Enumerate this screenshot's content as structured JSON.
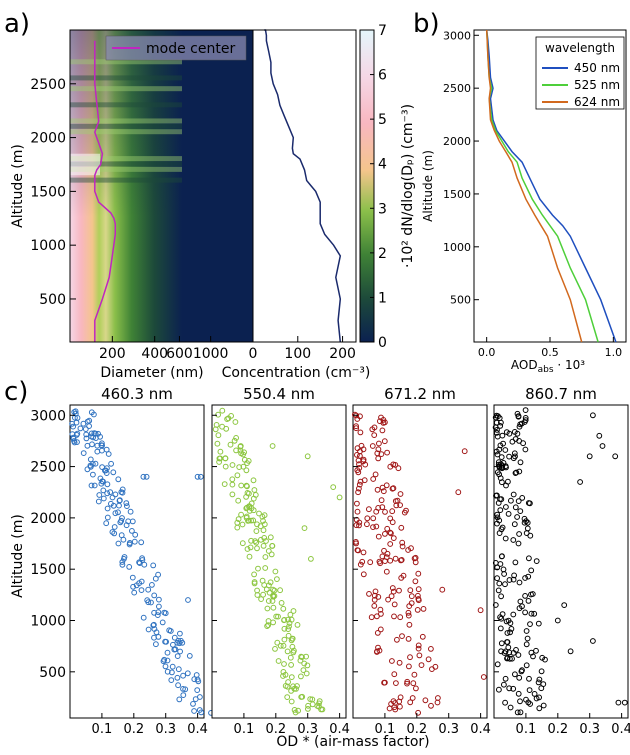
{
  "panel_labels": {
    "a": "a)",
    "b": "b)",
    "c": "c)"
  },
  "chart_data": [
    {
      "type": "heatmap",
      "id": "size-distribution",
      "ylabel": "Altitude (m)",
      "xlabel": "Diameter (nm)",
      "yticks": [
        500,
        1000,
        1500,
        2000,
        2500
      ],
      "xticks": [
        "200",
        "400",
        "600",
        "1000"
      ],
      "ylim": [
        100,
        3000
      ],
      "legend": [
        {
          "name": "mode center",
          "color": "#c026c0"
        }
      ],
      "mode_center": {
        "x_diam": [
          150,
          150,
          170,
          190,
          200,
          210,
          210,
          205,
          195,
          160,
          150,
          150,
          155,
          165,
          170,
          160,
          150,
          160,
          150,
          150,
          150
        ],
        "y": [
          100,
          300,
          500,
          700,
          900,
          1100,
          1200,
          1250,
          1300,
          1400,
          1500,
          1650,
          1700,
          1750,
          1850,
          1950,
          2050,
          2150,
          2500,
          2700,
          2900
        ]
      },
      "colorbar": {
        "label": "·10² dN/dlog(Dₚ) (cm⁻³)",
        "ticks": [
          "0",
          "1",
          "2",
          "3",
          "4",
          "5",
          "6",
          "7"
        ],
        "range": [
          0,
          7
        ]
      }
    },
    {
      "type": "line",
      "id": "concentration",
      "xlabel": "Concentration (cm⁻³)",
      "xticks": [
        "0",
        "100",
        "200"
      ],
      "xlim": [
        0,
        230
      ],
      "series": [
        {
          "color": "#1a2a6c",
          "x": [
            195,
            190,
            195,
            185,
            195,
            180,
            160,
            150,
            150,
            150,
            140,
            130,
            120,
            115,
            105,
            90,
            88,
            90,
            80,
            70,
            60,
            55,
            45,
            40,
            40,
            35,
            30,
            30,
            28,
            25
          ],
          "y": [
            100,
            300,
            500,
            700,
            900,
            1000,
            1100,
            1200,
            1300,
            1400,
            1500,
            1550,
            1600,
            1700,
            1800,
            1850,
            1900,
            2000,
            2100,
            2200,
            2300,
            2400,
            2500,
            2600,
            2700,
            2800,
            2900,
            2950,
            3000,
            3000
          ]
        }
      ]
    },
    {
      "type": "line",
      "id": "aod-abs",
      "xlabel": "AOD",
      "xlabel_sub": "abs",
      "xlabel_suffix": " · 10³",
      "ylabel": "Altitude (m)",
      "xlim": [
        -0.1,
        1.1
      ],
      "ylim": [
        100,
        3050
      ],
      "xticks": [
        "0.0",
        "0.5",
        "1.0"
      ],
      "yticks": [
        "500",
        "1000",
        "1500",
        "2000",
        "2500",
        "3000"
      ],
      "legend_title": "wavelength",
      "series": [
        {
          "name": "450 nm",
          "color": "#1f4fbf",
          "x": [
            1.02,
            0.9,
            0.78,
            0.66,
            0.6,
            0.52,
            0.42,
            0.34,
            0.28,
            0.2,
            0.14,
            0.08,
            0.05,
            0.03,
            0.05,
            0.03,
            0.02,
            0.01,
            0.0
          ],
          "y": [
            100,
            500,
            800,
            1100,
            1200,
            1300,
            1450,
            1650,
            1800,
            1900,
            2000,
            2100,
            2200,
            2400,
            2500,
            2600,
            2800,
            2950,
            3050
          ]
        },
        {
          "name": "525 nm",
          "color": "#4ecf3a",
          "x": [
            0.88,
            0.78,
            0.66,
            0.56,
            0.5,
            0.44,
            0.36,
            0.28,
            0.24,
            0.17,
            0.12,
            0.07,
            0.04,
            0.02,
            0.04,
            0.02,
            0.01,
            0.005,
            0.0
          ],
          "y": [
            100,
            500,
            800,
            1100,
            1200,
            1300,
            1450,
            1650,
            1800,
            1900,
            2000,
            2100,
            2200,
            2400,
            2500,
            2600,
            2800,
            2950,
            3050
          ]
        },
        {
          "name": "624 nm",
          "color": "#d2691e",
          "x": [
            0.75,
            0.66,
            0.56,
            0.48,
            0.43,
            0.38,
            0.31,
            0.24,
            0.2,
            0.15,
            0.1,
            0.06,
            0.03,
            0.02,
            0.03,
            0.02,
            0.01,
            0.004,
            0.0
          ],
          "y": [
            100,
            500,
            800,
            1100,
            1200,
            1300,
            1450,
            1650,
            1800,
            1900,
            2000,
            2100,
            2200,
            2400,
            2500,
            2600,
            2800,
            2950,
            3050
          ]
        }
      ]
    },
    {
      "type": "scatter",
      "id": "od-scatter",
      "ylabel": "Altitude (m)",
      "xlabel": "OD * (air-mass factor)",
      "ylim": [
        50,
        3100
      ],
      "xlim": [
        0,
        0.42
      ],
      "yticks": [
        "500",
        "1000",
        "1500",
        "2000",
        "2500",
        "3000"
      ],
      "xticks": [
        "0.1",
        "0.2",
        "0.3",
        "0.4"
      ],
      "panels": [
        {
          "title": "460.3 nm",
          "color": "#2f72c0",
          "trend": {
            "x0": 0.02,
            "x1": 0.4,
            "spread": 0.05
          },
          "outliers": [
            [
              0.23,
              2400
            ],
            [
              0.24,
              2400
            ],
            [
              0.4,
              2400
            ],
            [
              0.41,
              2400
            ],
            [
              0.37,
              1200
            ]
          ]
        },
        {
          "title": "550.4 nm",
          "color": "#8cc63f",
          "trend": {
            "x0": 0.02,
            "x1": 0.3,
            "spread": 0.05
          },
          "outliers": [
            [
              0.19,
              2700
            ],
            [
              0.3,
              2600
            ],
            [
              0.38,
              2300
            ],
            [
              0.4,
              2200
            ],
            [
              0.29,
              1900
            ],
            [
              0.31,
              1600
            ]
          ]
        },
        {
          "title": "671.2 nm",
          "color": "#a01515",
          "trend": {
            "x0": 0.02,
            "x1": 0.2,
            "spread": 0.09
          },
          "outliers": [
            [
              0.35,
              2650
            ],
            [
              0.33,
              2250
            ],
            [
              0.4,
              1100
            ],
            [
              0.41,
              450
            ],
            [
              0.28,
              1300
            ]
          ]
        },
        {
          "title": "860.7 nm",
          "color": "#000000",
          "trend": {
            "x0": 0.02,
            "x1": 0.1,
            "spread": 0.08
          },
          "outliers": [
            [
              0.31,
              3000
            ],
            [
              0.33,
              2800
            ],
            [
              0.34,
              2700
            ],
            [
              0.3,
              2600
            ],
            [
              0.38,
              2600
            ],
            [
              0.27,
              2350
            ],
            [
              0.22,
              1150
            ],
            [
              0.2,
              1000
            ],
            [
              0.24,
              700
            ],
            [
              0.31,
              800
            ],
            [
              0.41,
              200
            ],
            [
              0.39,
              200
            ]
          ]
        }
      ]
    }
  ]
}
